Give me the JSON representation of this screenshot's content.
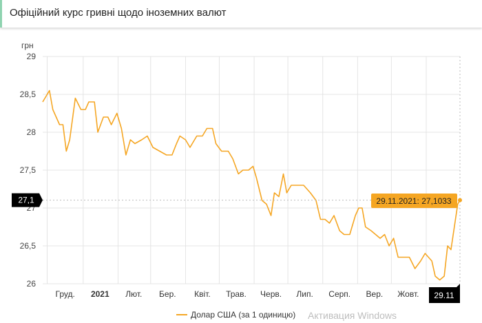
{
  "header": {
    "title": "Офіційний курс гривні щодо іноземних валют"
  },
  "watermark": "Активация Windows",
  "chart_data": {
    "type": "line",
    "title": "Офіційний курс гривні щодо іноземних валют",
    "ylabel": "грн",
    "ylim": [
      26,
      29
    ],
    "yticks": [
      {
        "v": 26,
        "label": "26"
      },
      {
        "v": 26.5,
        "label": "26,5"
      },
      {
        "v": 27,
        "label": "27"
      },
      {
        "v": 27.5,
        "label": "27,5"
      },
      {
        "v": 28,
        "label": "28"
      },
      {
        "v": 28.5,
        "label": "28,5"
      },
      {
        "v": 29,
        "label": "29"
      }
    ],
    "xlabel_unit": "days since 24.11.2020",
    "xlim": [
      0,
      371
    ],
    "month_gridlines": [
      4,
      36,
      67,
      96,
      127,
      157,
      188,
      218,
      249,
      280,
      310,
      341
    ],
    "xticks": [
      {
        "d": 20,
        "label": "Груд.",
        "bold": false
      },
      {
        "d": 51,
        "label": "2021",
        "bold": true
      },
      {
        "d": 81,
        "label": "Лют.",
        "bold": false
      },
      {
        "d": 111,
        "label": "Бер.",
        "bold": false
      },
      {
        "d": 142,
        "label": "Квіт.",
        "bold": false
      },
      {
        "d": 172,
        "label": "Трав.",
        "bold": false
      },
      {
        "d": 203,
        "label": "Черв.",
        "bold": false
      },
      {
        "d": 233,
        "label": "Лип.",
        "bold": false
      },
      {
        "d": 264,
        "label": "Серп.",
        "bold": false
      },
      {
        "d": 295,
        "label": "Вер.",
        "bold": false
      },
      {
        "d": 325,
        "label": "Жовт.",
        "bold": false
      }
    ],
    "series": [
      {
        "name": "Долар США (за 1 одиницю)",
        "color": "#f5a623",
        "x": [
          0,
          6,
          9,
          15,
          18,
          21,
          24,
          29,
          34,
          38,
          41,
          46,
          49,
          54,
          58,
          61,
          66,
          70,
          74,
          78,
          82,
          88,
          93,
          98,
          104,
          110,
          115,
          119,
          122,
          127,
          131,
          137,
          142,
          146,
          151,
          154,
          159,
          165,
          169,
          174,
          178,
          183,
          187,
          190,
          195,
          199,
          203,
          206,
          210,
          214,
          217,
          221,
          226,
          232,
          238,
          243,
          247,
          251,
          255,
          259,
          264,
          268,
          273,
          278,
          281,
          284,
          287,
          292,
          296,
          300,
          304,
          308,
          312,
          316,
          320,
          326,
          331,
          336,
          340,
          343,
          346,
          349,
          353,
          357,
          360,
          363,
          366,
          369,
          371
        ],
        "y": [
          28.4,
          28.55,
          28.3,
          28.1,
          28.1,
          27.75,
          27.9,
          28.45,
          28.3,
          28.3,
          28.4,
          28.4,
          28.0,
          28.2,
          28.2,
          28.1,
          28.25,
          28.05,
          27.7,
          27.9,
          27.85,
          27.9,
          27.95,
          27.8,
          27.75,
          27.7,
          27.7,
          27.85,
          27.95,
          27.9,
          27.8,
          27.95,
          27.95,
          28.05,
          28.05,
          27.85,
          27.75,
          27.75,
          27.65,
          27.45,
          27.5,
          27.5,
          27.55,
          27.4,
          27.1,
          27.05,
          26.9,
          27.2,
          27.15,
          27.45,
          27.2,
          27.3,
          27.3,
          27.3,
          27.2,
          27.1,
          26.85,
          26.85,
          26.8,
          26.9,
          26.7,
          26.65,
          26.65,
          26.9,
          27.0,
          27.0,
          26.75,
          26.7,
          26.65,
          26.6,
          26.65,
          26.5,
          26.6,
          26.35,
          26.35,
          26.35,
          26.2,
          26.3,
          26.4,
          26.35,
          26.3,
          26.1,
          26.05,
          26.1,
          26.5,
          26.45,
          26.75,
          27.05,
          27.1033
        ]
      }
    ],
    "crosshair": {
      "x_label": "29.11",
      "y_label": "27,1",
      "tooltip": "29.11.2021: 27,1033"
    },
    "legend": "bottom"
  }
}
